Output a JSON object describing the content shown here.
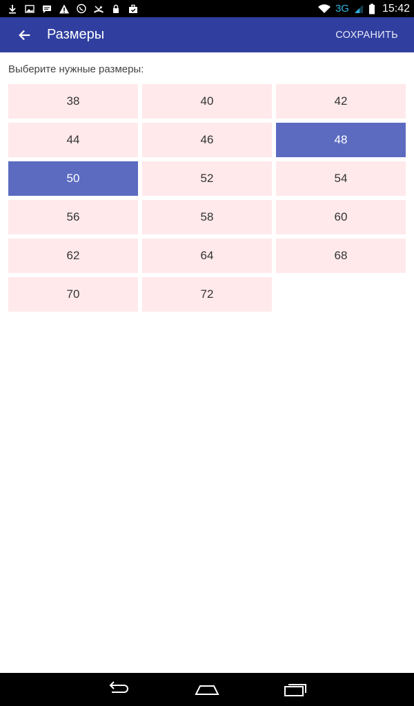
{
  "status_bar": {
    "left_icons": [
      "download-icon",
      "image-icon",
      "message-icon",
      "warning-icon",
      "viber-icon",
      "missed-call-icon",
      "lock-icon",
      "briefcase-icon"
    ],
    "network_type": "3G",
    "time": "15:42"
  },
  "app_bar": {
    "title": "Размеры",
    "save_label": "СОХРАНИТЬ",
    "background": "#303f9f"
  },
  "content": {
    "hint": "Выберите нужные размеры:",
    "sizes": [
      {
        "label": "38",
        "selected": false
      },
      {
        "label": "40",
        "selected": false
      },
      {
        "label": "42",
        "selected": false
      },
      {
        "label": "44",
        "selected": false
      },
      {
        "label": "46",
        "selected": false
      },
      {
        "label": "48",
        "selected": true
      },
      {
        "label": "50",
        "selected": true
      },
      {
        "label": "52",
        "selected": false
      },
      {
        "label": "54",
        "selected": false
      },
      {
        "label": "56",
        "selected": false
      },
      {
        "label": "58",
        "selected": false
      },
      {
        "label": "60",
        "selected": false
      },
      {
        "label": "62",
        "selected": false
      },
      {
        "label": "64",
        "selected": false
      },
      {
        "label": "68",
        "selected": false
      },
      {
        "label": "70",
        "selected": false
      },
      {
        "label": "72",
        "selected": false
      }
    ],
    "colors": {
      "cell": "#ffe9eb",
      "cell_selected": "#5c6bc0"
    }
  },
  "nav_bar": {
    "buttons": [
      "back-nav-icon",
      "home-nav-icon",
      "recents-nav-icon"
    ]
  }
}
